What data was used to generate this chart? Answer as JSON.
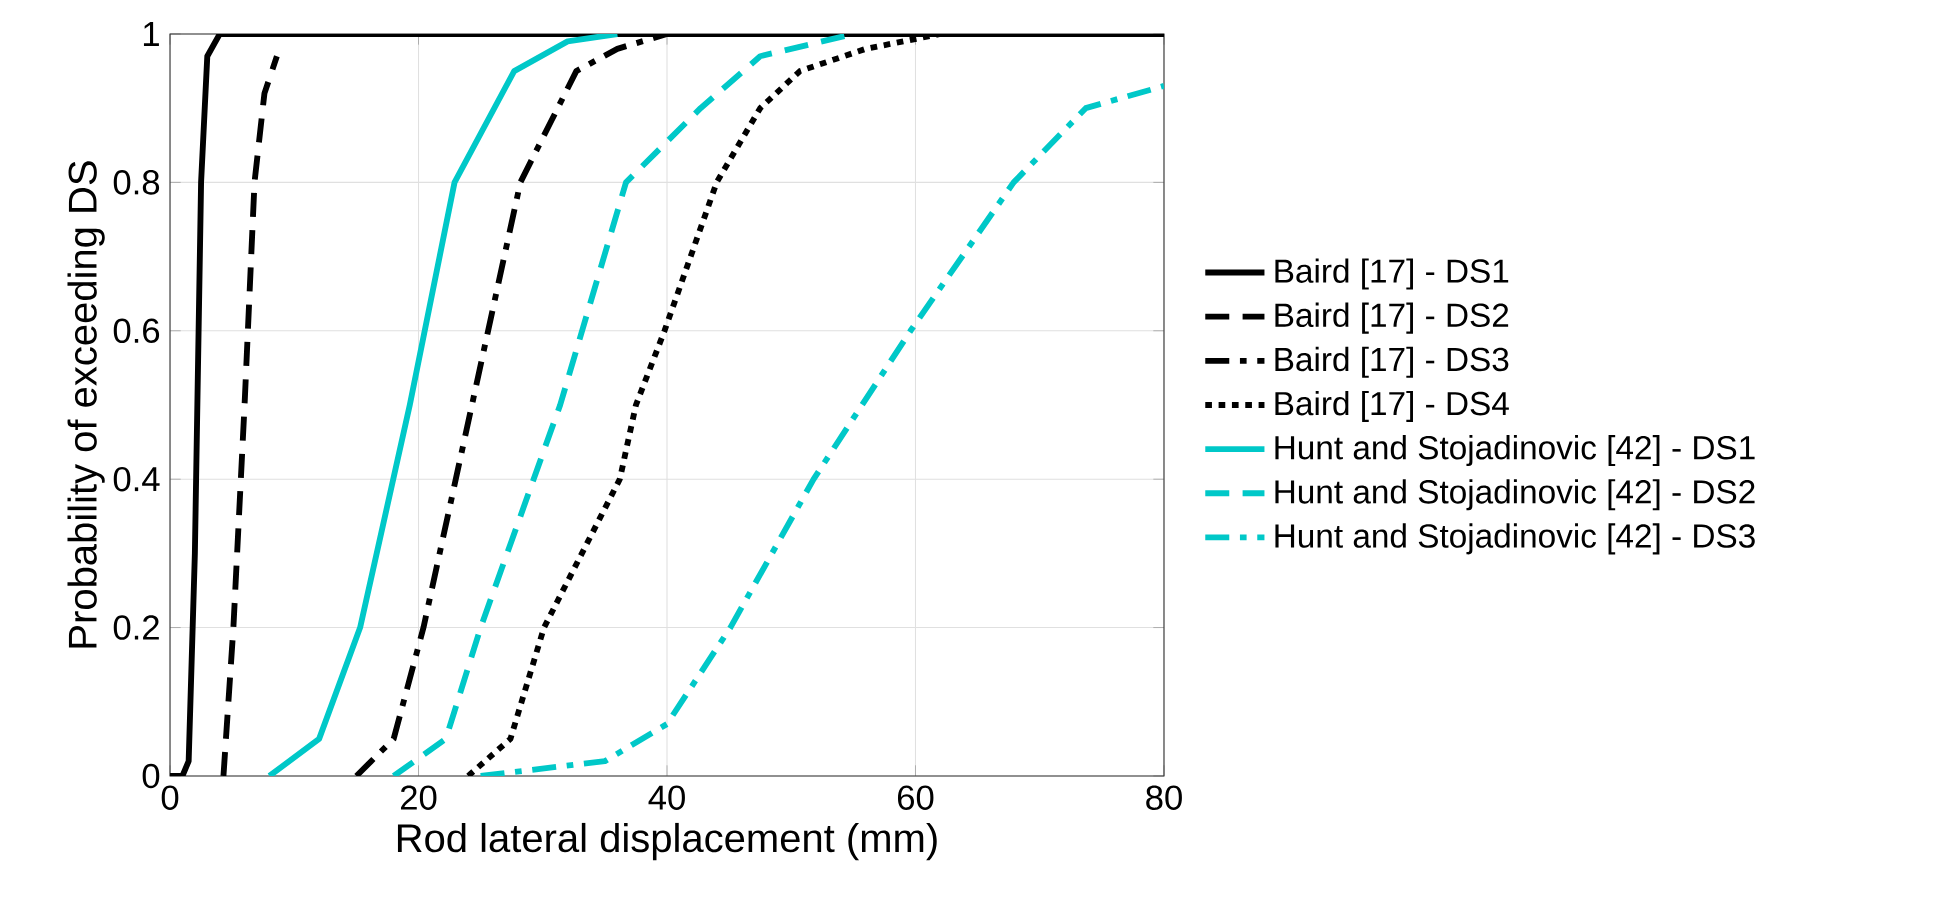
{
  "chart_data": {
    "type": "line",
    "xlabel": "Rod lateral displacement (mm)",
    "ylabel": "Probability of exceeding DS",
    "xlim": [
      0,
      80
    ],
    "ylim": [
      0,
      1
    ],
    "xticks": [
      0,
      20,
      40,
      60,
      80
    ],
    "yticks": [
      0,
      0.2,
      0.4,
      0.6,
      0.8,
      1
    ],
    "grid": true,
    "legend": "right",
    "marker": "none",
    "series": [
      {
        "name": "Baird [17] - DS1",
        "color": "#000000",
        "line_style": "solid",
        "x": [
          0,
          1,
          1.5,
          2,
          2.5,
          3,
          4,
          80
        ],
        "values": [
          0,
          0,
          0.02,
          0.3,
          0.8,
          0.97,
          1,
          1
        ]
      },
      {
        "name": "Baird [17] - DS2",
        "color": "#000000",
        "line_style": "dashed",
        "x": [
          4.3,
          5.1,
          6.0,
          6.8,
          7.6,
          8.6
        ],
        "values": [
          0,
          0.2,
          0.5,
          0.8,
          0.92,
          0.97
        ]
      },
      {
        "name": "Baird [17] - DS3",
        "color": "#000000",
        "line_style": "dashdot",
        "x": [
          15,
          18,
          20.4,
          24.3,
          28.2,
          32.7,
          36,
          40
        ],
        "values": [
          0,
          0.05,
          0.2,
          0.5,
          0.8,
          0.95,
          0.98,
          1
        ]
      },
      {
        "name": "Baird [17] - DS4",
        "color": "#000000",
        "line_style": "dotted",
        "x": [
          24,
          27.4,
          30.1,
          36.2,
          37.5,
          39.8,
          44.0,
          47.5,
          50.7,
          56,
          62
        ],
        "values": [
          0,
          0.05,
          0.2,
          0.4,
          0.5,
          0.6,
          0.8,
          0.9,
          0.95,
          0.98,
          1
        ]
      },
      {
        "name": "Hunt and Stojadinovic [42] - DS1",
        "color": "#00c8c8",
        "line_style": "solid",
        "x": [
          8,
          12,
          15.3,
          19.3,
          22.9,
          27.7,
          32,
          36
        ],
        "values": [
          0,
          0.05,
          0.2,
          0.5,
          0.8,
          0.95,
          0.99,
          1
        ]
      },
      {
        "name": "Hunt and Stojadinovic [42] - DS2",
        "color": "#00c8c8",
        "line_style": "dashed",
        "x": [
          18,
          22.2,
          25.0,
          31.4,
          36.7,
          42.7,
          47.5,
          55
        ],
        "values": [
          0,
          0.05,
          0.2,
          0.5,
          0.8,
          0.9,
          0.97,
          1
        ]
      },
      {
        "name": "Hunt and Stojadinovic [42] - DS3",
        "color": "#00c8c8",
        "line_style": "dashdot",
        "x": [
          25,
          35,
          40,
          45.1,
          51.8,
          59.6,
          67.9,
          73.7,
          80
        ],
        "values": [
          0,
          0.02,
          0.07,
          0.2,
          0.4,
          0.6,
          0.8,
          0.9,
          0.93
        ]
      }
    ]
  }
}
